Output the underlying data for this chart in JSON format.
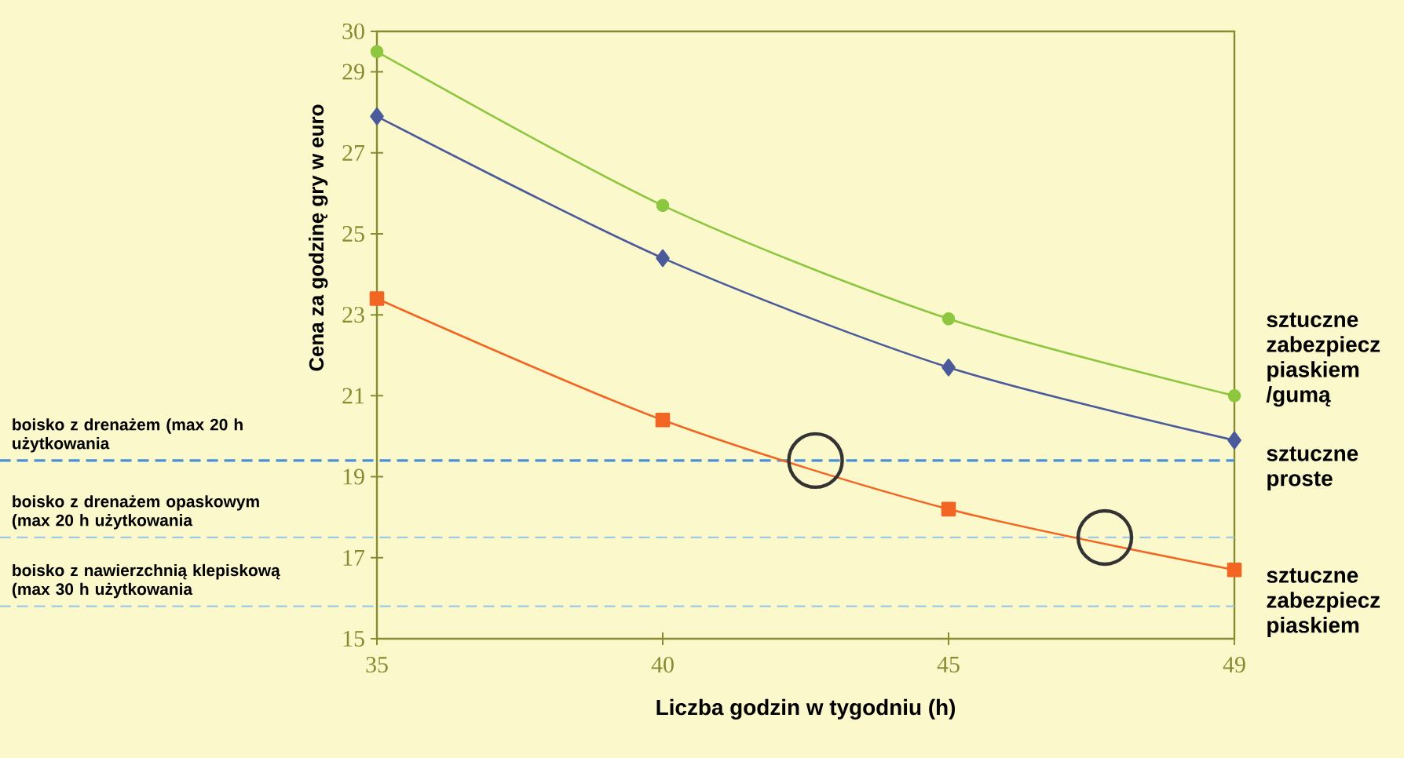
{
  "chart_data": {
    "type": "line",
    "xlabel": "Liczba godzin w tygodniu (h)",
    "ylabel": "Cena za godzinę gry w euro",
    "categories": [
      "35",
      "40",
      "45",
      "49"
    ],
    "series": [
      {
        "name": "sztuczne zabezpiecz piaskiem /gumą",
        "color": "#8dc63f",
        "marker": "circle",
        "values": [
          29.5,
          25.7,
          22.9,
          21.0
        ]
      },
      {
        "name": "sztuczne proste",
        "color": "#4a5a9a",
        "marker": "diamond",
        "values": [
          27.9,
          24.4,
          21.7,
          19.9
        ]
      },
      {
        "name": "sztuczne zabezpiecz piaskiem",
        "color": "#f26522",
        "marker": "square",
        "values": [
          23.4,
          20.4,
          18.2,
          16.7
        ]
      }
    ],
    "ylim": [
      15,
      30
    ],
    "yticks": [
      15,
      17,
      19,
      21,
      23,
      25,
      27,
      29,
      30
    ],
    "ref_lines": [
      {
        "axis": "y",
        "value": 19.4,
        "label": "boisko z drenażem (max 20 h użytkowania",
        "color": "#4a90d9",
        "line_style": "dashed"
      },
      {
        "axis": "y",
        "value": 17.5,
        "label": "boisko z drenażem opaskowym (max 20 h użytkowania",
        "color": "#9ecae1",
        "line_style": "dashed"
      },
      {
        "axis": "y",
        "value": 15.8,
        "label": "boisko z nawierzchnią klepiskową (max 30 h użytkowania",
        "color": "#9ecae1",
        "line_style": "dashed"
      }
    ],
    "grid": false
  }
}
